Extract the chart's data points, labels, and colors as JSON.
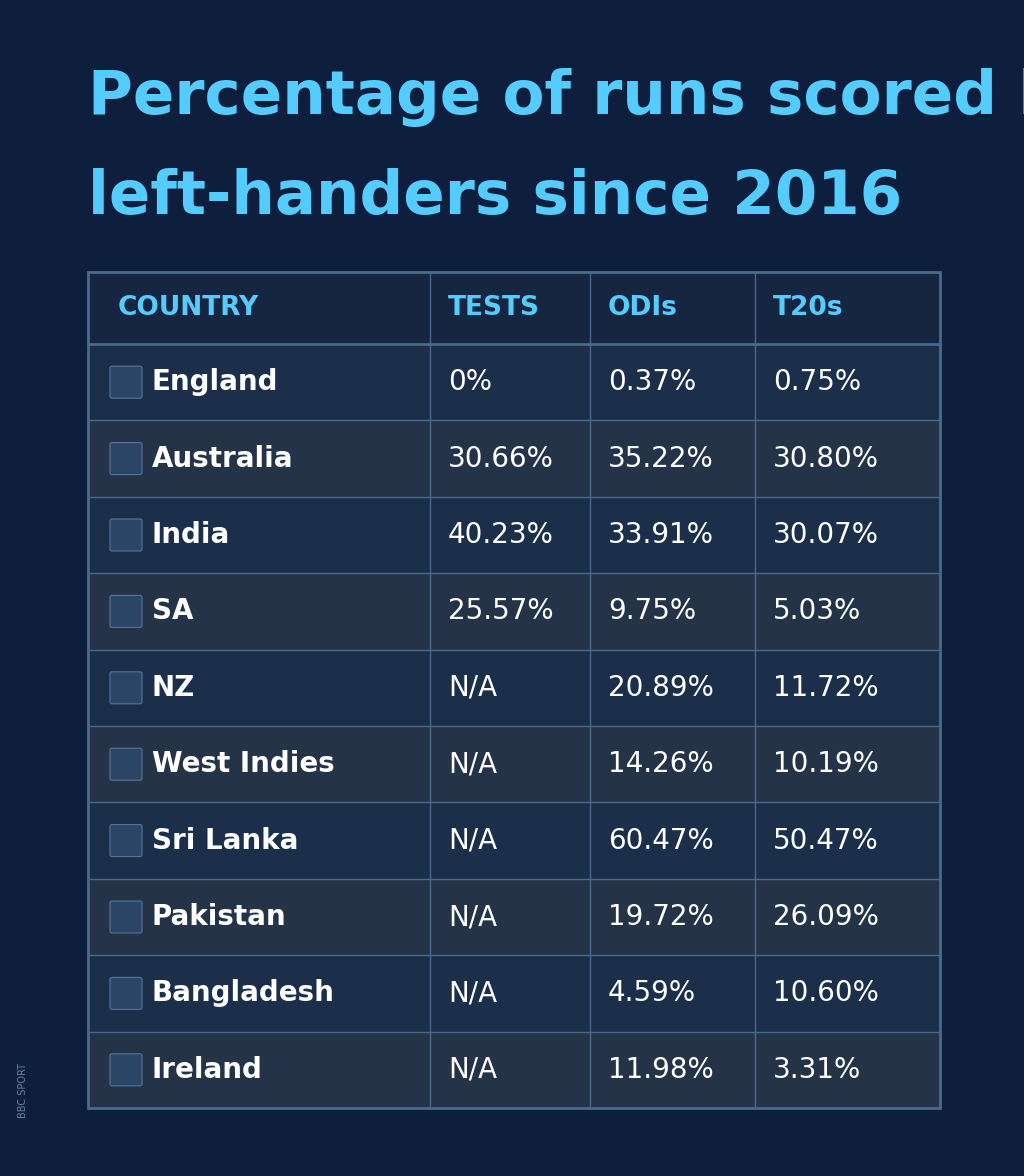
{
  "title_line1": "Percentage of runs scored by",
  "title_line2": "left-handers since 2016",
  "title_color": "#55CCFF",
  "background_color": "#0D1F3C",
  "table_bg_dark": "#1B2E4A",
  "table_bg_light": "#243347",
  "table_border_color": "#4A6A8A",
  "header_bg": "#162640",
  "header_text_color": "#55CCFF",
  "cell_text_color": "#FFFFFF",
  "columns": [
    "COUNTRY",
    "TESTS",
    "ODIs",
    "T20s"
  ],
  "rows": [
    {
      "country": "England",
      "tests": "0%",
      "odis": "0.37%",
      "t20s": "0.75%"
    },
    {
      "country": "Australia",
      "tests": "30.66%",
      "odis": "35.22%",
      "t20s": "30.80%"
    },
    {
      "country": "India",
      "tests": "40.23%",
      "odis": "33.91%",
      "t20s": "30.07%"
    },
    {
      "country": "SA",
      "tests": "25.57%",
      "odis": "9.75%",
      "t20s": "5.03%"
    },
    {
      "country": "NZ",
      "tests": "N/A",
      "odis": "20.89%",
      "t20s": "11.72%"
    },
    {
      "country": "West Indies",
      "tests": "N/A",
      "odis": "14.26%",
      "t20s": "10.19%"
    },
    {
      "country": "Sri Lanka",
      "tests": "N/A",
      "odis": "60.47%",
      "t20s": "50.47%"
    },
    {
      "country": "Pakistan",
      "tests": "N/A",
      "odis": "19.72%",
      "t20s": "26.09%"
    },
    {
      "country": "Bangladesh",
      "tests": "N/A",
      "odis": "4.59%",
      "t20s": "10.60%"
    },
    {
      "country": "Ireland",
      "tests": "N/A",
      "odis": "11.98%",
      "t20s": "3.31%"
    }
  ],
  "bbc_sport_text": "BBC SPORT"
}
